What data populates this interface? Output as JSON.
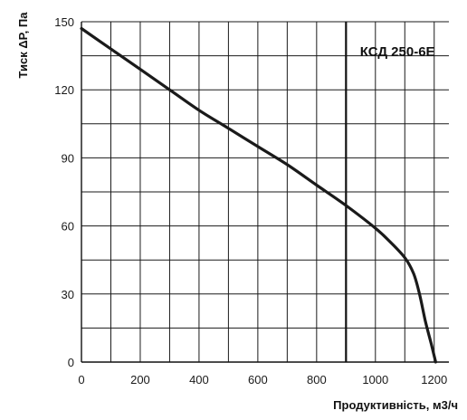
{
  "chart_data": {
    "type": "line",
    "xlabel": "Продуктивність, м3/ч",
    "ylabel": "Тиск ΔP, Па",
    "xlim": [
      0,
      1250
    ],
    "ylim": [
      0,
      150
    ],
    "x_ticks": [
      0,
      200,
      400,
      600,
      800,
      1000,
      1200
    ],
    "y_ticks": [
      0,
      30,
      60,
      90,
      120,
      150
    ],
    "x_grid_step": 100,
    "y_grid_step": 15,
    "grid": true,
    "annotation": {
      "text": "КСД 250-6Е",
      "x_line": 900
    },
    "series": [
      {
        "color": "#1a1a1a",
        "x": [
          0,
          100,
          200,
          300,
          400,
          500,
          600,
          700,
          800,
          900,
          1000,
          1050,
          1100,
          1130,
          1150,
          1170,
          1190,
          1205
        ],
        "y": [
          147,
          138,
          129,
          120,
          111,
          103,
          95,
          87,
          78,
          69,
          59,
          53,
          46,
          39,
          30,
          18,
          8,
          0
        ]
      }
    ]
  }
}
